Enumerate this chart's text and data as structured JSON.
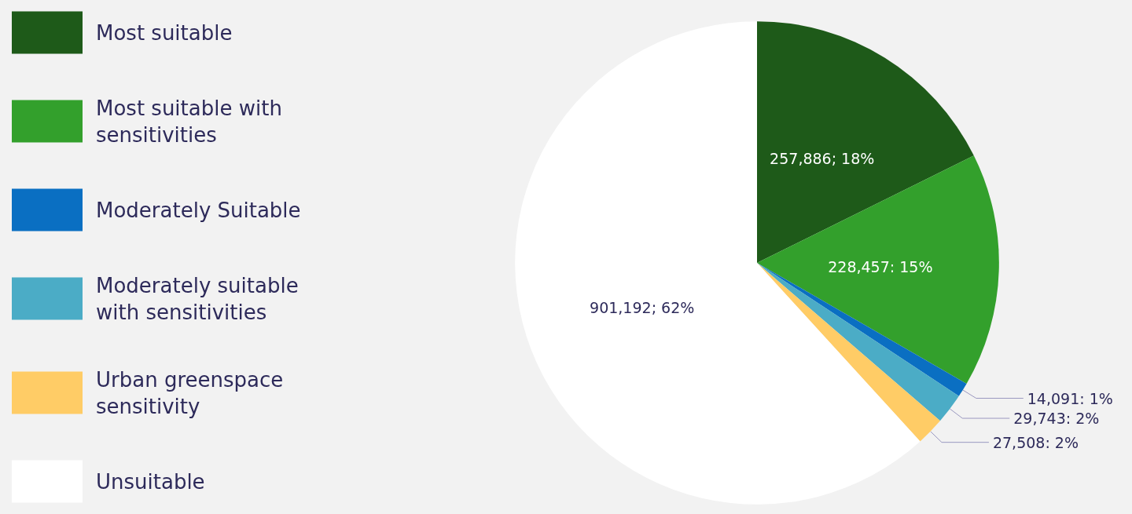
{
  "chart_data": {
    "type": "pie",
    "categories": [
      "Most suitable",
      "Most suitable with sensitivities",
      "Moderately Suitable",
      "Moderately suitable with sensitivities",
      "Urban greenspace sensitivity",
      "Unsuitable"
    ],
    "values": [
      257886,
      228457,
      14091,
      29743,
      27508,
      901192
    ],
    "colors": [
      "#1e5a19",
      "#33a02c",
      "#0a6fc2",
      "#4bacc6",
      "#ffcc66",
      "#ffffff"
    ],
    "value_labels": [
      "257,886; 18%",
      "228,457: 15%",
      "14,091: 1%",
      "29,743: 2%",
      "27,508: 2%",
      "901,192; 62%"
    ],
    "legend": "left"
  }
}
